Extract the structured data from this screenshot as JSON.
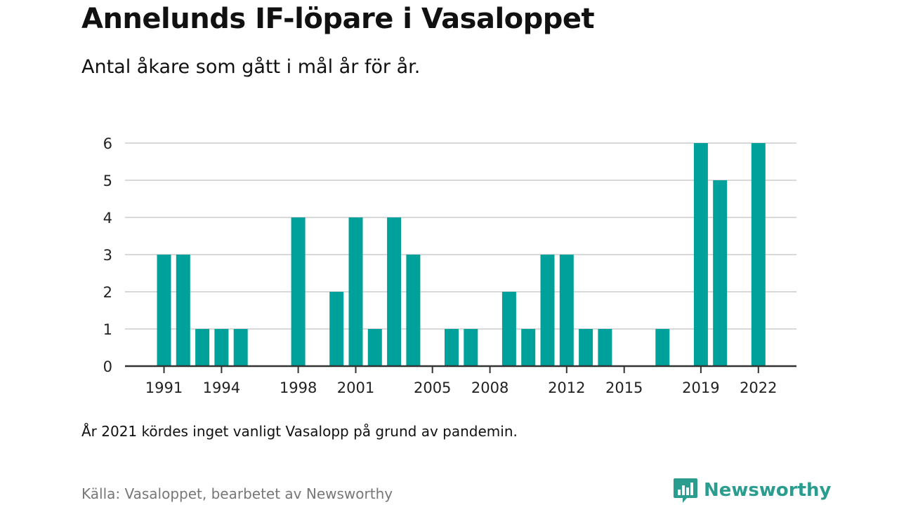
{
  "title": "Annelunds IF-löpare i Vasaloppet",
  "subtitle": "Antal åkare som gått i mål år för år.",
  "note": "År 2021 kördes inget vanligt Vasalopp på grund av pandemin.",
  "source": "Källa: Vasaloppet, bearbetet av Newsworthy",
  "brand": {
    "name": "Newsworthy",
    "icon": "newsworthy-logo-icon",
    "color": "#2a9d8f"
  },
  "colors": {
    "bar": "#00a19a",
    "grid": "#d9d9d9",
    "axis": "#333333"
  },
  "chart_data": {
    "type": "bar",
    "categories": [
      "1991",
      "1992",
      "1993",
      "1994",
      "1995",
      "1996",
      "1997",
      "1998",
      "1999",
      "2000",
      "2001",
      "2002",
      "2003",
      "2004",
      "2005",
      "2006",
      "2007",
      "2008",
      "2009",
      "2010",
      "2011",
      "2012",
      "2013",
      "2014",
      "2015",
      "2016",
      "2017",
      "2018",
      "2019",
      "2020",
      "2021",
      "2022"
    ],
    "values": [
      3,
      3,
      1,
      1,
      1,
      0,
      0,
      4,
      0,
      2,
      4,
      1,
      4,
      3,
      0,
      1,
      1,
      0,
      2,
      1,
      3,
      3,
      1,
      1,
      0,
      0,
      1,
      0,
      6,
      5,
      null,
      6
    ],
    "x_tick_labels": [
      "1991",
      "1994",
      "1998",
      "2001",
      "2005",
      "2008",
      "2012",
      "2015",
      "2019",
      "2022"
    ],
    "y_ticks": [
      0,
      1,
      2,
      3,
      4,
      5,
      6
    ],
    "ylim": [
      0,
      6
    ],
    "grid": true,
    "title": "Annelunds IF-löpare i Vasaloppet",
    "xlabel": "",
    "ylabel": ""
  }
}
